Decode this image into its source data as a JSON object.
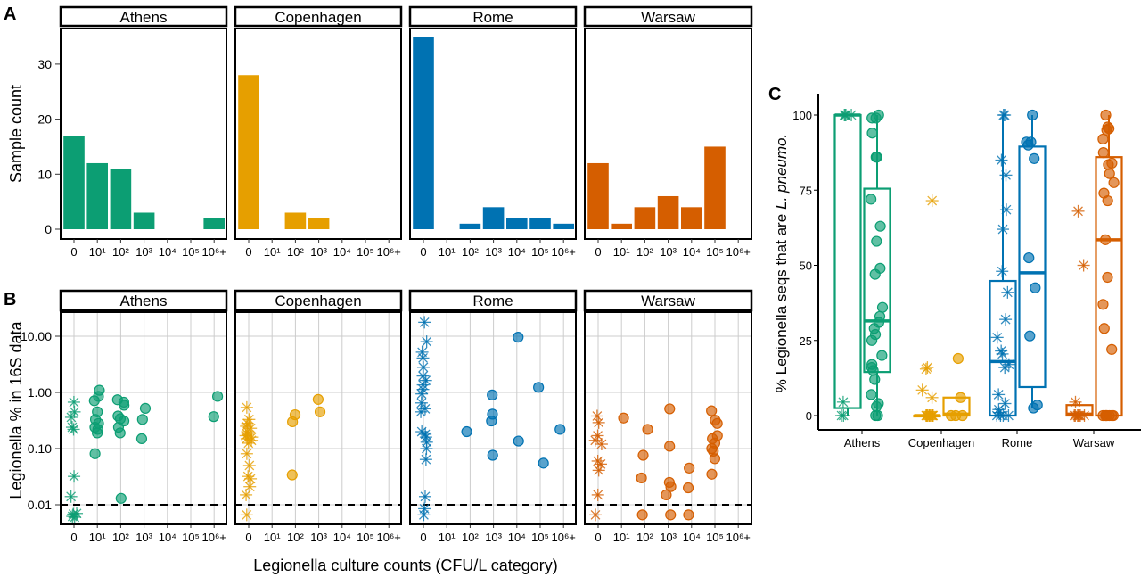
{
  "colors": {
    "Athens": "#0C9E73",
    "Copenhagen": "#E69F00",
    "Rome": "#0072B2",
    "Warsaw": "#D55E00"
  },
  "chart_data": [
    {
      "panel_label": "A",
      "type": "bar",
      "facets": [
        "Athens",
        "Copenhagen",
        "Rome",
        "Warsaw"
      ],
      "categories": [
        "0",
        "10¹",
        "10²",
        "10³",
        "10⁴",
        "10⁵",
        "10⁶+"
      ],
      "ylabel": "Sample count",
      "ylim": [
        0,
        36.5
      ],
      "yticks": [
        "0",
        "10",
        "20",
        "30"
      ],
      "series": [
        {
          "name": "Athens",
          "values": [
            17,
            12,
            11,
            3,
            0,
            0,
            2
          ]
        },
        {
          "name": "Copenhagen",
          "values": [
            28,
            0,
            3,
            2,
            0,
            0,
            0
          ]
        },
        {
          "name": "Rome",
          "values": [
            35,
            0,
            1,
            4,
            2,
            2,
            1
          ]
        },
        {
          "name": "Warsaw",
          "values": [
            12,
            1,
            4,
            6,
            4,
            15,
            0
          ]
        }
      ]
    },
    {
      "panel_label": "B",
      "type": "scatter",
      "facets": [
        "Athens",
        "Copenhagen",
        "Rome",
        "Warsaw"
      ],
      "categories": [
        "0",
        "10¹",
        "10²",
        "10³",
        "10⁴",
        "10⁵",
        "10⁶+"
      ],
      "xlabel": "Legionella culture counts (CFU/L category)",
      "ylabel": "Legionella % in 16S data",
      "yscale": "log",
      "ylim": [
        0.0045,
        28.8
      ],
      "yticks": [
        "0.01",
        "0.10",
        "1.00",
        "10.00"
      ],
      "grid": true,
      "reference_line": {
        "y": 0.01,
        "style": "dashed"
      },
      "marker_note": "asterisk = culture 0, circle = culture positive",
      "points": {
        "Athens": [
          [
            0,
            0.67
          ],
          [
            0,
            0.45
          ],
          [
            0,
            0.36
          ],
          [
            0,
            0.24
          ],
          [
            0,
            0.22
          ],
          [
            0,
            0.032
          ],
          [
            0,
            0.014
          ],
          [
            0,
            0.007
          ],
          [
            0,
            0.006
          ],
          [
            0,
            0.0068
          ],
          [
            0,
            0.0062
          ],
          [
            1,
            1.09
          ],
          [
            1,
            0.85
          ],
          [
            1,
            0.71
          ],
          [
            1,
            0.45
          ],
          [
            1,
            0.33
          ],
          [
            1,
            0.28
          ],
          [
            1,
            0.24
          ],
          [
            1,
            0.22
          ],
          [
            1,
            0.19
          ],
          [
            1,
            0.081
          ],
          [
            2,
            0.74
          ],
          [
            2,
            0.67
          ],
          [
            2,
            0.59
          ],
          [
            2,
            0.38
          ],
          [
            2,
            0.34
          ],
          [
            2,
            0.31
          ],
          [
            2,
            0.24
          ],
          [
            2,
            0.19
          ],
          [
            2,
            0.013
          ],
          [
            3,
            0.52
          ],
          [
            3,
            0.33
          ],
          [
            3,
            0.15
          ],
          [
            6,
            0.85
          ],
          [
            6,
            0.37
          ]
        ],
        "Copenhagen": [
          [
            0,
            0.54
          ],
          [
            0,
            0.33
          ],
          [
            0,
            0.28
          ],
          [
            0,
            0.25
          ],
          [
            0,
            0.23
          ],
          [
            0,
            0.2
          ],
          [
            0,
            0.18
          ],
          [
            0,
            0.17
          ],
          [
            0,
            0.16
          ],
          [
            0,
            0.15
          ],
          [
            0,
            0.14
          ],
          [
            0,
            0.125
          ],
          [
            0,
            0.081
          ],
          [
            0,
            0.05
          ],
          [
            0,
            0.032
          ],
          [
            0,
            0.029
          ],
          [
            0,
            0.021
          ],
          [
            0,
            0.015
          ],
          [
            0,
            0.0066
          ],
          [
            2,
            0.4
          ],
          [
            2,
            0.3
          ],
          [
            2,
            0.034
          ],
          [
            3,
            0.75
          ],
          [
            3,
            0.45
          ]
        ],
        "Rome": [
          [
            0,
            17.7
          ],
          [
            0,
            8
          ],
          [
            0,
            5.2
          ],
          [
            0,
            4.1
          ],
          [
            0,
            2.8
          ],
          [
            0,
            1.96
          ],
          [
            0,
            1.63
          ],
          [
            0,
            1.36
          ],
          [
            0,
            1.13
          ],
          [
            0,
            0.94
          ],
          [
            0,
            0.65
          ],
          [
            0,
            0.51
          ],
          [
            0,
            0.45
          ],
          [
            0,
            0.2
          ],
          [
            0,
            0.18
          ],
          [
            0,
            0.16
          ],
          [
            0,
            0.13
          ],
          [
            0,
            0.1
          ],
          [
            0,
            0.064
          ],
          [
            0,
            0.014
          ],
          [
            0,
            0.0085
          ],
          [
            0,
            0.0066
          ],
          [
            2,
            0.2
          ],
          [
            3,
            0.9
          ],
          [
            3,
            0.41
          ],
          [
            3,
            0.31
          ],
          [
            3,
            0.076
          ],
          [
            4,
            9.6
          ],
          [
            4,
            0.136
          ],
          [
            5,
            1.23
          ],
          [
            5,
            0.055
          ],
          [
            6,
            0.22
          ]
        ],
        "Warsaw": [
          [
            0,
            0.38
          ],
          [
            0,
            0.29
          ],
          [
            0,
            0.17
          ],
          [
            0,
            0.14
          ],
          [
            0,
            0.12
          ],
          [
            0,
            0.06
          ],
          [
            0,
            0.053
          ],
          [
            0,
            0.041
          ],
          [
            0,
            0.015
          ],
          [
            0,
            0.0066
          ],
          [
            1,
            0.35
          ],
          [
            2,
            0.22
          ],
          [
            2,
            0.076
          ],
          [
            2,
            0.03
          ],
          [
            2,
            0.0066
          ],
          [
            3,
            0.51
          ],
          [
            3,
            0.11
          ],
          [
            3,
            0.025
          ],
          [
            3,
            0.021
          ],
          [
            3,
            0.015
          ],
          [
            3,
            0.0066
          ],
          [
            4,
            0.045
          ],
          [
            4,
            0.02
          ],
          [
            4,
            0.0066
          ],
          [
            5,
            0.47
          ],
          [
            5,
            0.32
          ],
          [
            5,
            0.28
          ],
          [
            5,
            0.17
          ],
          [
            5,
            0.15
          ],
          [
            5,
            0.125
          ],
          [
            5,
            0.1
          ],
          [
            5,
            0.09
          ],
          [
            5,
            0.066
          ],
          [
            5,
            0.035
          ]
        ]
      }
    },
    {
      "panel_label": "C",
      "type": "box",
      "categories": [
        "Athens",
        "Copenhagen",
        "Rome",
        "Warsaw"
      ],
      "ylabel": "% Legionella seqs that are",
      "ylabel_italic": "L. pneumo.",
      "ylim": [
        -4,
        107
      ],
      "yticks": [
        "0",
        "25",
        "50",
        "75",
        "100"
      ],
      "groups": {
        "Athens": {
          "asterisk": {
            "box": [
              0,
              2.5,
              100,
              100,
              100
            ],
            "points": [
              100,
              100,
              100,
              100,
              4.5,
              0,
              0
            ]
          },
          "circle": {
            "box": [
              0,
              14.5,
              31.5,
              75.5,
              100
            ],
            "points": [
              100,
              99,
              99,
              94,
              86,
              86,
              72,
              63,
              58,
              49,
              47,
              36,
              33,
              31,
              29,
              27,
              25,
              20,
              17,
              16,
              15,
              12,
              7,
              4,
              3,
              0,
              0
            ]
          }
        },
        "Copenhagen": {
          "asterisk": {
            "box": [
              0,
              0,
              0,
              0,
              0
            ],
            "points": [
              71.5,
              16,
              15.5,
              8.5,
              6,
              0,
              0,
              0,
              0,
              0,
              0,
              0,
              0,
              0,
              0,
              0,
              0,
              0,
              0
            ]
          },
          "circle": {
            "box": [
              0,
              0,
              0.5,
              6,
              6
            ],
            "points": [
              19,
              6,
              0,
              0,
              0
            ]
          }
        },
        "Rome": {
          "asterisk": {
            "box": [
              0,
              0,
              18,
              44.8,
              100
            ],
            "points": [
              100,
              100,
              85,
              80,
              68.5,
              62,
              48,
              41,
              32,
              26,
              21.5,
              20.5,
              17,
              16,
              7,
              4,
              2,
              1,
              0,
              0,
              0,
              0
            ]
          },
          "circle": {
            "box": [
              2.5,
              9.5,
              47.5,
              89.5,
              100
            ],
            "points": [
              100,
              91,
              91,
              90,
              85.5,
              52.5,
              42.5,
              26.5,
              3.5,
              2.5
            ]
          }
        },
        "Warsaw": {
          "asterisk": {
            "box": [
              0,
              0,
              0.5,
              3.5,
              4.5
            ],
            "points": [
              68,
              50,
              4.5,
              0,
              0,
              0,
              0,
              0,
              0,
              0
            ]
          },
          "circle": {
            "box": [
              0,
              0,
              58.5,
              86,
              100
            ],
            "points": [
              100,
              96,
              95.5,
              95,
              92,
              87.5,
              84,
              83.5,
              80.5,
              77.5,
              74,
              71.5,
              58.5,
              46,
              37,
              29,
              22,
              0,
              0,
              0,
              0,
              0,
              0,
              0
            ]
          }
        }
      }
    }
  ]
}
